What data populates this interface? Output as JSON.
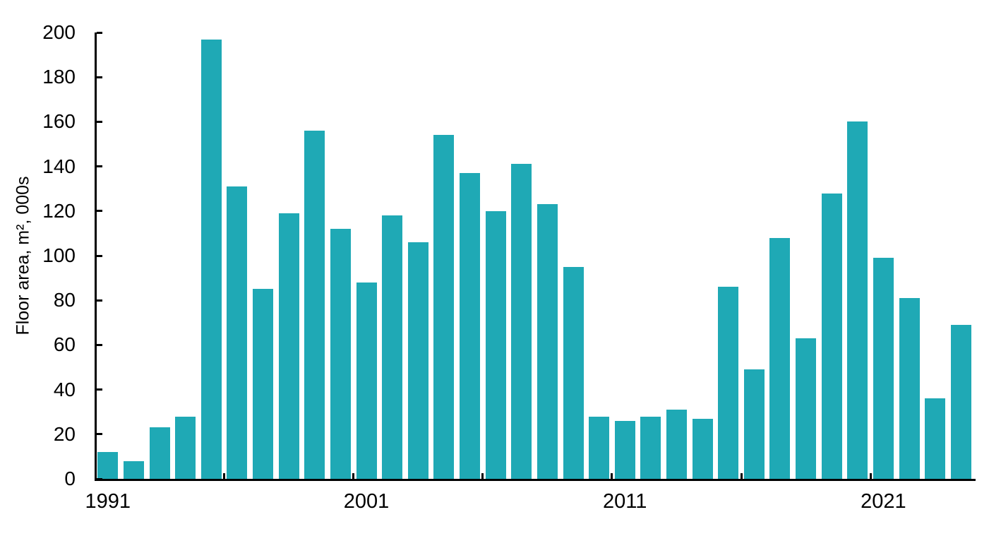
{
  "chart_data": {
    "type": "bar",
    "title": "",
    "xlabel": "",
    "ylabel": "Floor area, m², 000s",
    "categories": [
      1991,
      1992,
      1993,
      1994,
      1995,
      1996,
      1997,
      1998,
      1999,
      2000,
      2001,
      2002,
      2003,
      2004,
      2005,
      2006,
      2007,
      2008,
      2009,
      2010,
      2011,
      2012,
      2013,
      2014,
      2015,
      2016,
      2017,
      2018,
      2019,
      2020,
      2021,
      2022,
      2023,
      2024
    ],
    "values": [
      12,
      8,
      23,
      28,
      197,
      131,
      85,
      119,
      156,
      112,
      88,
      118,
      106,
      154,
      137,
      120,
      141,
      123,
      95,
      28,
      26,
      28,
      31,
      27,
      86,
      49,
      108,
      63,
      128,
      160,
      99,
      81,
      36,
      69
    ],
    "ylim": [
      0,
      200
    ],
    "ytick_step": 20,
    "ytick_labels": [
      "0",
      "20",
      "40",
      "60",
      "80",
      "100",
      "120",
      "140",
      "160",
      "180",
      "200"
    ],
    "xtick_labels": [
      "1991",
      "2001",
      "2011",
      "2021"
    ],
    "xtick_boundary_after_years": [
      1995,
      2000,
      2005,
      2010,
      2015,
      2020
    ],
    "grid": false,
    "legend": "none",
    "bar_color": "#1FA9B5",
    "axis_color": "#000000",
    "background_color": "#FFFFFF"
  }
}
